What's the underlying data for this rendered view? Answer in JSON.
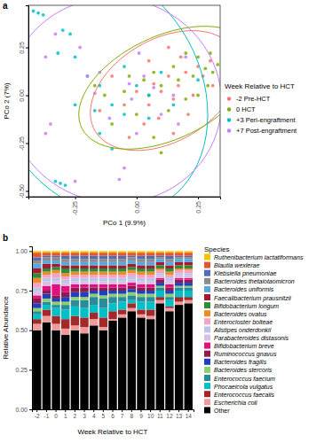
{
  "chart_data": [
    {
      "type": "scatter",
      "title": "a",
      "x_label": "PCo 1 (9.9%)",
      "y_label": "PCo 2 (7%)",
      "legend_title": "Week Relative to HCT",
      "legend": "right",
      "grid": false,
      "marker": "circle",
      "xlim": [
        -0.44,
        0.34
      ],
      "xticks": [
        -0.25,
        {
          "value": 0,
          "label": "0.00"
        },
        0.25
      ],
      "ylim": [
        -0.53,
        0.47
      ],
      "yticks": [
        {
          "value": -0.5,
          "label": "-0.50"
        },
        -0.25,
        {
          "value": 0,
          "label": "0.00"
        },
        0.25
      ],
      "series": [
        {
          "name": "-2 Pre-HCT",
          "color": "#f8766d",
          "x": [
            0.07,
            0.1,
            0.13,
            0.15,
            0.17,
            0.2,
            0.23,
            0.05,
            0.0,
            -0.05,
            0.25,
            0.27,
            0.09,
            0.15,
            0.03,
            0.13,
            -0.1,
            0.3,
            0.21,
            0.05,
            -0.15,
            -0.03,
            0.18,
            0.31
          ],
          "values": [
            0.06,
            0.02,
            0.1,
            -0.02,
            0.05,
            0.12,
            0.0,
            -0.05,
            0.02,
            -0.05,
            0.15,
            0.1,
            -0.12,
            -0.2,
            -0.15,
            0.25,
            0.1,
            0.18,
            -0.1,
            0.18,
            -0.08,
            -0.22,
            0.2,
            0.05
          ]
        },
        {
          "name": "0 HCT",
          "color": "#7cae00",
          "x": [
            0.2,
            0.25,
            0.28,
            0.31,
            0.23,
            0.17,
            0.1,
            0.05,
            0.0,
            -0.05,
            -0.1,
            0.13,
            0.07,
            0.15,
            0.3,
            0.33,
            0.03,
            -0.13,
            0.2,
            0.25,
            0.1,
            -0.03,
            0.29,
            0.07,
            -0.17
          ],
          "values": [
            0.22,
            0.2,
            0.14,
            0.12,
            0.1,
            0.08,
            0.05,
            0.0,
            -0.1,
            0.02,
            -0.15,
            -0.08,
            -0.22,
            0.15,
            0.22,
            0.16,
            0.08,
            0.0,
            -0.02,
            0.0,
            -0.3,
            0.1,
            0.05,
            0.12,
            0.05
          ]
        },
        {
          "name": "+3 Peri-engraftment",
          "color": "#00bfc4",
          "x": [
            -0.42,
            -0.4,
            -0.38,
            -0.3,
            -0.27,
            -0.32,
            -0.25,
            -0.2,
            -0.15,
            -0.1,
            -0.05,
            0.0,
            0.05,
            -0.15,
            -0.1,
            0.05,
            0.1,
            -0.25,
            0.15,
            -0.33,
            -0.31,
            -0.29,
            0.25,
            -0.05,
            -0.17
          ],
          "values": [
            0.44,
            0.43,
            0.42,
            0.34,
            0.32,
            0.22,
            0.2,
            0.1,
            0.05,
            -0.05,
            -0.1,
            0.05,
            -0.12,
            -0.2,
            -0.28,
            0.0,
            0.12,
            -0.05,
            -0.05,
            -0.45,
            -0.46,
            -0.47,
            0.08,
            0.15,
            -0.08
          ]
        },
        {
          "name": "+7 Post-engraftment",
          "color": "#c77cff",
          "x": [
            -0.37,
            -0.33,
            -0.23,
            -0.15,
            -0.17,
            -0.11,
            -0.03,
            0.0,
            -0.05,
            -0.07,
            0.07,
            0.03,
            0.15,
            -0.35,
            -0.37,
            0.1,
            0.2,
            -0.2,
            -0.02,
            -0.25,
            0.01,
            0.17
          ],
          "values": [
            0.2,
            0.32,
            0.25,
            0.12,
            0.01,
            -0.12,
            0.06,
            -0.2,
            -0.38,
            -0.44,
            0.04,
            0.1,
            0.0,
            -0.15,
            -0.2,
            -0.1,
            0.2,
            0.1,
            -0.02,
            -0.45,
            0.22,
            -0.15
          ]
        }
      ]
    },
    {
      "type": "bar",
      "stacked": true,
      "title": "b",
      "x_label": "Week Relative to HCT",
      "y_label": "Relative Abundance",
      "legend_title": "Species",
      "legend": "right",
      "categories": [
        "-2",
        "-1",
        "0",
        "1",
        "2",
        "3",
        "4",
        "5",
        "6",
        "7",
        "8",
        "9",
        "10",
        "11",
        "12",
        "13",
        "14"
      ],
      "ylim": [
        0,
        1.03
      ],
      "yticks": [
        {
          "value": 0,
          "label": "0.00"
        },
        0.25,
        {
          "value": 0.5,
          "label": "0.50"
        },
        0.75,
        {
          "value": 1,
          "label": "1.00"
        }
      ],
      "series": [
        {
          "name": "Ruthenibacterium lactatiformans",
          "color": "#f5c400",
          "values": [
            0.01,
            0.01,
            0.01,
            0.01,
            0.01,
            0.01,
            0.01,
            0.01,
            0.01,
            0.01,
            0.01,
            0.01,
            0.01,
            0.01,
            0.01,
            0.01,
            0.01
          ]
        },
        {
          "name": "Blautia wexlerae",
          "color": "#e4572e",
          "values": [
            0.03,
            0.02,
            0.02,
            0.02,
            0.02,
            0.02,
            0.02,
            0.02,
            0.02,
            0.02,
            0.02,
            0.02,
            0.02,
            0.02,
            0.02,
            0.02,
            0.02
          ]
        },
        {
          "name": "Klebsiella pneumoniae",
          "color": "#4f6db8",
          "values": [
            0.02,
            0.01,
            0.01,
            0.02,
            0.02,
            0.02,
            0.02,
            0.02,
            0.02,
            0.02,
            0.01,
            0.02,
            0.02,
            0.01,
            0.02,
            0.01,
            0.01
          ]
        },
        {
          "name": "Bacteroides thetaiotaomicron",
          "color": "#8c8c8c",
          "values": [
            0.02,
            0.02,
            0.02,
            0.02,
            0.02,
            0.02,
            0.02,
            0.02,
            0.02,
            0.02,
            0.02,
            0.02,
            0.02,
            0.01,
            0.02,
            0.01,
            0.01
          ]
        },
        {
          "name": "Bacteroides uniformis",
          "color": "#56a8e0",
          "values": [
            0.03,
            0.02,
            0.02,
            0.02,
            0.02,
            0.02,
            0.02,
            0.02,
            0.02,
            0.02,
            0.02,
            0.02,
            0.02,
            0.02,
            0.02,
            0.02,
            0.02
          ]
        },
        {
          "name": "Faecalibacterium prausnitzii",
          "color": "#a6192e",
          "values": [
            0.03,
            0.03,
            0.02,
            0.02,
            0.02,
            0.02,
            0.02,
            0.02,
            0.02,
            0.02,
            0.02,
            0.02,
            0.02,
            0.02,
            0.02,
            0.02,
            0.02
          ]
        },
        {
          "name": "Bifidobacterium longum",
          "color": "#2e8b3a",
          "values": [
            0.03,
            0.02,
            0.02,
            0.03,
            0.02,
            0.02,
            0.02,
            0.02,
            0.02,
            0.02,
            0.02,
            0.02,
            0.02,
            0.02,
            0.02,
            0.02,
            0.02
          ]
        },
        {
          "name": "Bacteroides ovatus",
          "color": "#f08a24",
          "values": [
            0.03,
            0.02,
            0.02,
            0.02,
            0.02,
            0.02,
            0.02,
            0.02,
            0.02,
            0.02,
            0.02,
            0.02,
            0.02,
            0.01,
            0.02,
            0.01,
            0.01
          ]
        },
        {
          "name": "Enterocloster bolteae",
          "color": "#f4a3c7",
          "values": [
            0.03,
            0.02,
            0.03,
            0.02,
            0.02,
            0.02,
            0.02,
            0.02,
            0.02,
            0.02,
            0.02,
            0.02,
            0.02,
            0.02,
            0.02,
            0.02,
            0.02
          ]
        },
        {
          "name": "Alistipes onderdonkii",
          "color": "#b9c6ea",
          "values": [
            0.02,
            0.02,
            0.02,
            0.02,
            0.02,
            0.02,
            0.02,
            0.02,
            0.02,
            0.02,
            0.02,
            0.02,
            0.02,
            0.01,
            0.02,
            0.01,
            0.01
          ]
        },
        {
          "name": "Parabacteroides distasonis",
          "color": "#d8c0e6",
          "values": [
            0.03,
            0.03,
            0.02,
            0.02,
            0.02,
            0.02,
            0.02,
            0.02,
            0.02,
            0.02,
            0.02,
            0.02,
            0.02,
            0.02,
            0.02,
            0.02,
            0.02
          ]
        },
        {
          "name": "Bifidobacterium breve",
          "color": "#e0117f",
          "values": [
            0.02,
            0.03,
            0.07,
            0.04,
            0.02,
            0.02,
            0.02,
            0.02,
            0.02,
            0.02,
            0.02,
            0.02,
            0.02,
            0.01,
            0.02,
            0.01,
            0.01
          ]
        },
        {
          "name": "Ruminococcus gnavus",
          "color": "#8e1b4f",
          "values": [
            0.03,
            0.02,
            0.02,
            0.03,
            0.03,
            0.03,
            0.02,
            0.02,
            0.02,
            0.02,
            0.02,
            0.02,
            0.02,
            0.02,
            0.02,
            0.02,
            0.02
          ]
        },
        {
          "name": "Bacteroides fragilis",
          "color": "#1f3fbf",
          "values": [
            0.03,
            0.03,
            0.02,
            0.03,
            0.03,
            0.03,
            0.02,
            0.03,
            0.02,
            0.02,
            0.02,
            0.02,
            0.02,
            0.02,
            0.02,
            0.02,
            0.02
          ]
        },
        {
          "name": "Bacteroides stercoris",
          "color": "#8ccf6b",
          "values": [
            0.02,
            0.02,
            0.02,
            0.02,
            0.02,
            0.02,
            0.02,
            0.02,
            0.02,
            0.02,
            0.02,
            0.02,
            0.02,
            0.01,
            0.02,
            0.01,
            0.01
          ]
        },
        {
          "name": "Enterococcus faecium",
          "color": "#2a8c9a",
          "values": [
            0.02,
            0.02,
            0.02,
            0.03,
            0.04,
            0.05,
            0.05,
            0.06,
            0.04,
            0.03,
            0.03,
            0.03,
            0.03,
            0.02,
            0.02,
            0.02,
            0.02
          ]
        },
        {
          "name": "Phocaeicola vulgatus",
          "color": "#00c0c7",
          "values": [
            0.03,
            0.03,
            0.05,
            0.06,
            0.06,
            0.06,
            0.05,
            0.06,
            0.05,
            0.05,
            0.02,
            0.05,
            0.05,
            0.04,
            0.04,
            0.04,
            0.04
          ]
        },
        {
          "name": "Enterococcus faecalis",
          "color": "#a3282a",
          "values": [
            0.03,
            0.04,
            0.05,
            0.06,
            0.06,
            0.06,
            0.04,
            0.06,
            0.05,
            0.03,
            0.03,
            0.03,
            0.04,
            0.02,
            0.01,
            0.03,
            0.02
          ]
        },
        {
          "name": "Escherichia coli",
          "color": "#f19a9a",
          "values": [
            0.04,
            0.04,
            0.04,
            0.04,
            0.03,
            0.04,
            0.04,
            0.02,
            0.01,
            0.02,
            0.02,
            0.02,
            0.02,
            0.02,
            0.02,
            0.02,
            0.02
          ]
        },
        {
          "name": "Other",
          "color": "#000000",
          "values": [
            0.5,
            0.55,
            0.5,
            0.47,
            0.5,
            0.48,
            0.53,
            0.5,
            0.56,
            0.58,
            0.62,
            0.58,
            0.57,
            0.67,
            0.62,
            0.66,
            0.67
          ]
        }
      ]
    }
  ]
}
